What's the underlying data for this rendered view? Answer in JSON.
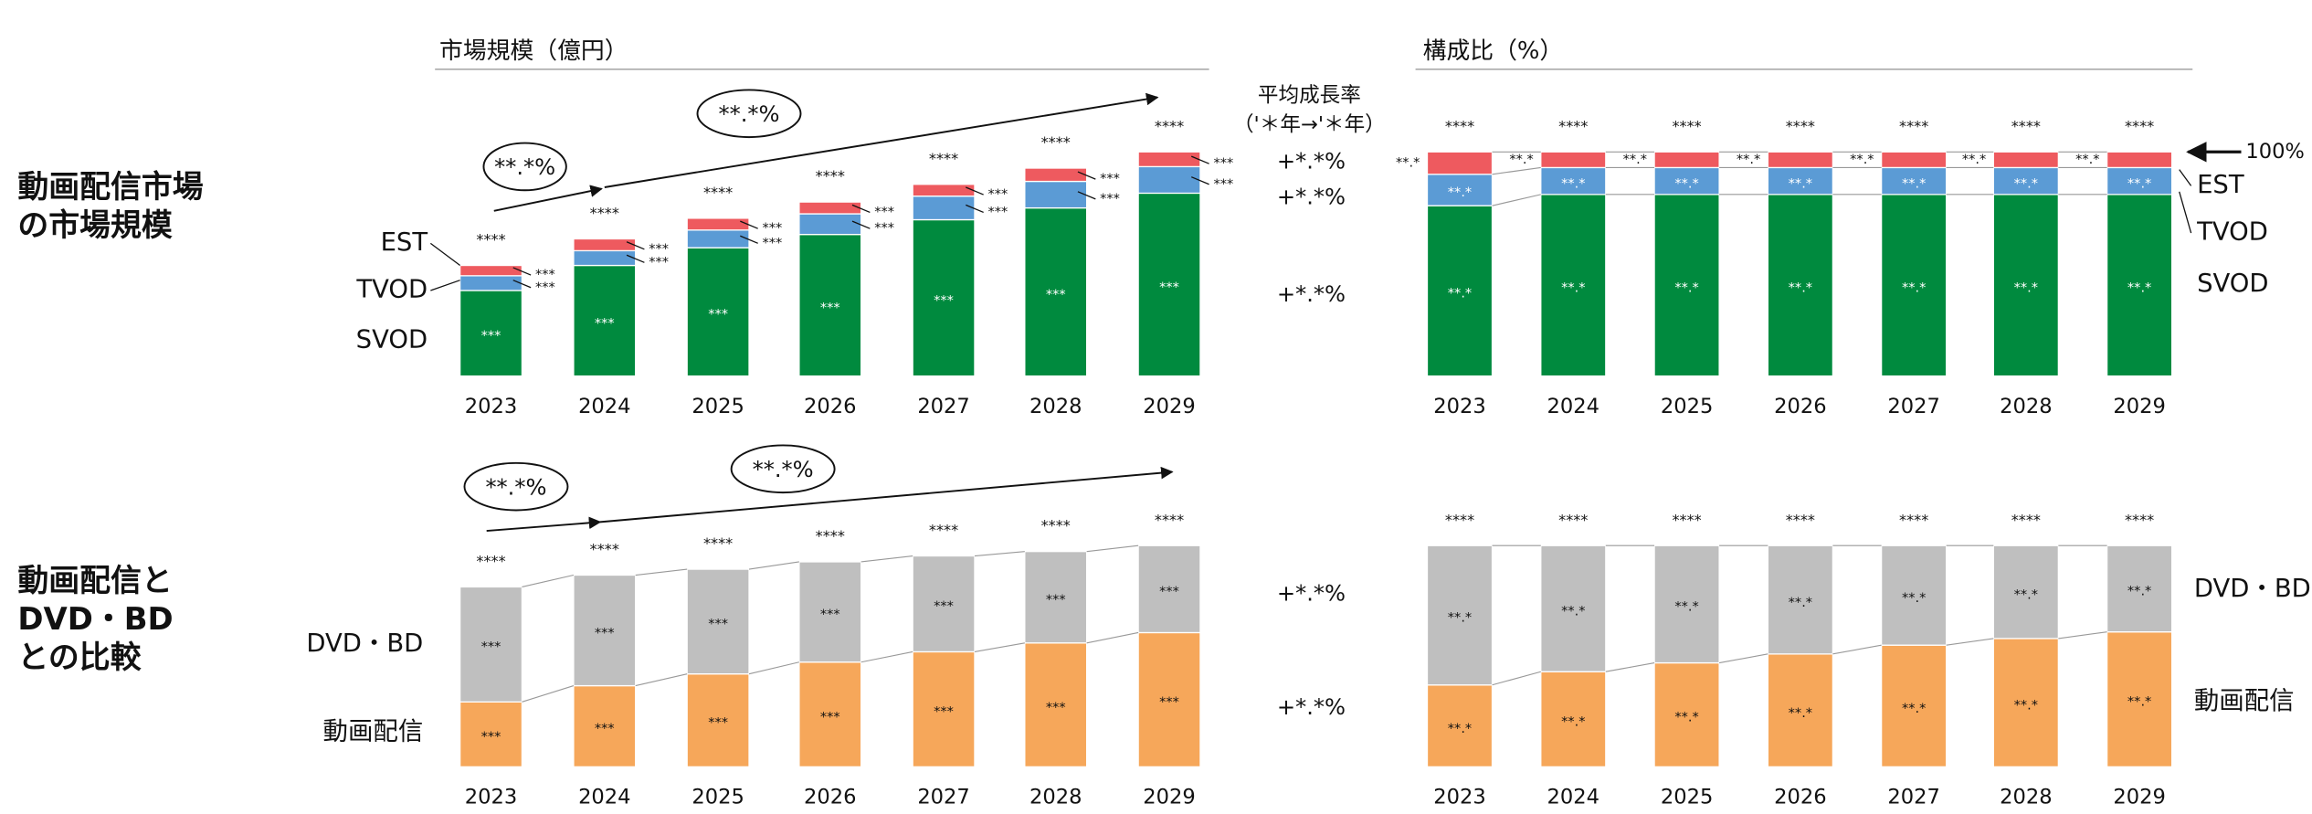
{
  "row_labels": [
    [
      "動画配信市場",
      "の市場規模"
    ],
    [
      "動画配信と",
      "DVD・BD",
      "との比較"
    ]
  ],
  "chart_data": [
    {
      "type": "stacked_bar",
      "title": "市場規模（億円）",
      "categories": [
        "2023",
        "2024",
        "2025",
        "2026",
        "2027",
        "2028",
        "2029"
      ],
      "series": [
        {
          "name": "SVOD",
          "color": "#008a3e",
          "values": [
            58,
            75,
            87,
            96,
            106,
            114,
            124
          ],
          "value_labels": [
            "***",
            "***",
            "***",
            "***",
            "***",
            "***",
            "***"
          ]
        },
        {
          "name": "TVOD",
          "color": "#5b9bd5",
          "values": [
            10,
            10,
            12,
            14,
            16,
            18,
            18
          ],
          "value_labels": [
            "***",
            "***",
            "***",
            "***",
            "***",
            "***",
            "***"
          ]
        },
        {
          "name": "EST",
          "color": "#ee5a5f",
          "values": [
            7,
            8,
            8,
            8,
            8,
            9,
            10
          ],
          "value_labels": [
            "***",
            "***",
            "***",
            "***",
            "***",
            "***",
            "***"
          ]
        }
      ],
      "total_labels": [
        "****",
        "****",
        "****",
        "****",
        "****",
        "****",
        "****"
      ],
      "growth_ovals": [
        "**.*%",
        "**.*%"
      ],
      "growth_title": [
        "平均成長率",
        "（'＊年→'＊年）"
      ],
      "growth_rates": [
        "+*.*%",
        "+*.*%",
        "+*.*%"
      ]
    },
    {
      "type": "stacked_bar",
      "title": "構成比（%）",
      "categories": [
        "2023",
        "2024",
        "2025",
        "2026",
        "2027",
        "2028",
        "2029"
      ],
      "series": [
        {
          "name": "SVOD",
          "color": "#008a3e",
          "values": [
            76,
            81,
            81,
            81,
            81,
            81,
            81
          ],
          "value_labels": [
            "**.*",
            "**.*",
            "**.*",
            "**.*",
            "**.*",
            "**.*",
            "**.*"
          ]
        },
        {
          "name": "TVOD",
          "color": "#5b9bd5",
          "values": [
            14,
            12,
            12,
            12,
            12,
            12,
            12
          ],
          "value_labels": [
            "**.*",
            "**.*",
            "**.*",
            "**.*",
            "**.*",
            "**.*",
            "**.*"
          ]
        },
        {
          "name": "EST",
          "color": "#ee5a5f",
          "values": [
            10,
            7,
            7,
            7,
            7,
            7,
            7
          ],
          "value_labels": [
            "**.*",
            "**.*",
            "**.*",
            "**.*",
            "**.*",
            "**.*",
            "**.*"
          ]
        }
      ],
      "total_labels": [
        "****",
        "****",
        "****",
        "****",
        "****",
        "****",
        "****"
      ],
      "top_marker": "100%"
    },
    {
      "type": "stacked_bar",
      "categories": [
        "2023",
        "2024",
        "2025",
        "2026",
        "2027",
        "2028",
        "2029"
      ],
      "series": [
        {
          "name": "動画配信",
          "color": "#f6a75a",
          "values": [
            44,
            55,
            63,
            71,
            78,
            84,
            91
          ],
          "value_labels": [
            "***",
            "***",
            "***",
            "***",
            "***",
            "***",
            "***"
          ]
        },
        {
          "name": "DVD・BD",
          "color": "#bfbfbf",
          "values": [
            78,
            75,
            71,
            68,
            65,
            62,
            59
          ],
          "value_labels": [
            "***",
            "***",
            "***",
            "***",
            "***",
            "***",
            "***"
          ]
        }
      ],
      "total_labels": [
        "****",
        "****",
        "****",
        "****",
        "****",
        "****",
        "****"
      ],
      "growth_ovals": [
        "**.*%",
        "**.*%"
      ],
      "growth_rates": [
        "+*.*%",
        "+*.*%"
      ]
    },
    {
      "type": "stacked_bar",
      "categories": [
        "2023",
        "2024",
        "2025",
        "2026",
        "2027",
        "2028",
        "2029"
      ],
      "series": [
        {
          "name": "動画配信",
          "color": "#f6a75a",
          "values": [
            37,
            43,
            47,
            51,
            55,
            58,
            61
          ],
          "value_labels": [
            "**.*",
            "**.*",
            "**.*",
            "**.*",
            "**.*",
            "**.*",
            "**.*"
          ]
        },
        {
          "name": "DVD・BD",
          "color": "#bfbfbf",
          "values": [
            63,
            57,
            53,
            49,
            45,
            42,
            39
          ],
          "value_labels": [
            "**.*",
            "**.*",
            "**.*",
            "**.*",
            "**.*",
            "**.*",
            "**.*"
          ]
        }
      ],
      "total_labels": [
        "****",
        "****",
        "****",
        "****",
        "****",
        "****",
        "****"
      ]
    }
  ]
}
